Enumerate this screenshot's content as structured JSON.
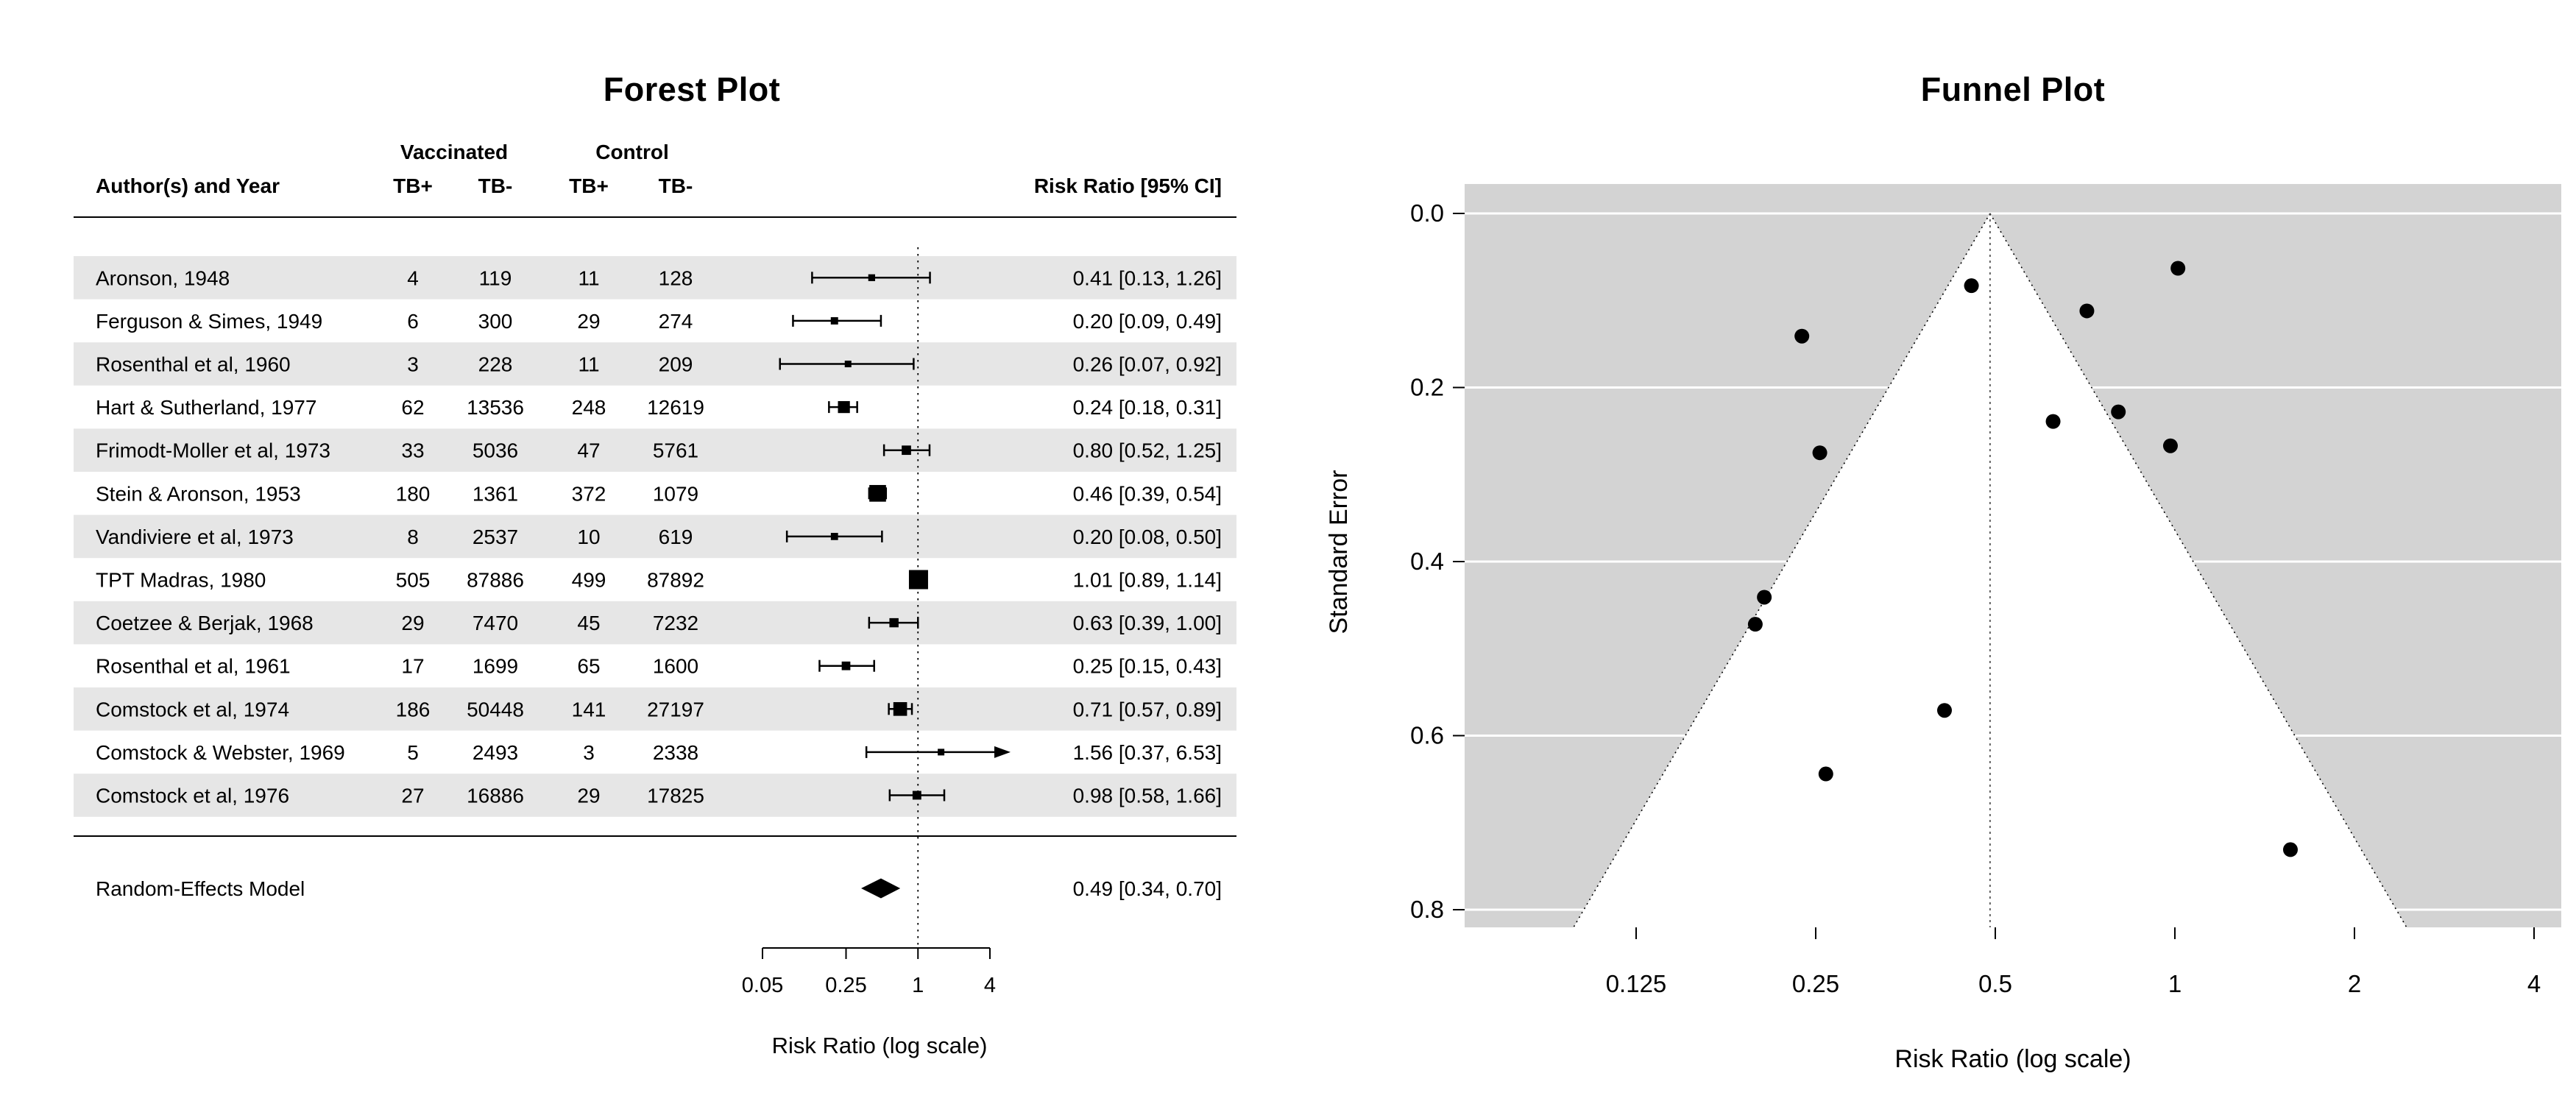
{
  "colors": {
    "stripe": "#e6e6e6",
    "funnel_bg": "#d3d3d3",
    "funnel_region": "#ffffff",
    "ink": "#000000",
    "gridline": "#ffffff"
  },
  "chart_data": [
    {
      "type": "forest",
      "title": "Forest Plot",
      "axis_label": "Risk Ratio (log scale)",
      "columns": {
        "author": "Author(s) and Year",
        "group1": "Vaccinated",
        "group2": "Control",
        "tbpos": "TB+",
        "tbneg": "TB-",
        "rr": "Risk Ratio [95% CI]"
      },
      "axis": {
        "scale": "log",
        "ticks": [
          0.05,
          0.25,
          1,
          4
        ],
        "tick_labels": [
          "0.05",
          "0.25",
          "1",
          "4"
        ],
        "reference_line": 1,
        "xlim": [
          0.05,
          4
        ]
      },
      "studies": [
        {
          "author": "Aronson, 1948",
          "vpos": "4",
          "vneg": "119",
          "cpos": "11",
          "cneg": "128",
          "est": 0.41,
          "lo": 0.13,
          "hi": 1.26,
          "se": 0.571,
          "label": "0.41 [0.13, 1.26]"
        },
        {
          "author": "Ferguson & Simes, 1949",
          "vpos": "6",
          "vneg": "300",
          "cpos": "29",
          "cneg": "274",
          "est": 0.2,
          "lo": 0.09,
          "hi": 0.49,
          "se": 0.441,
          "label": "0.20 [0.09, 0.49]"
        },
        {
          "author": "Rosenthal et al, 1960",
          "vpos": "3",
          "vneg": "228",
          "cpos": "11",
          "cneg": "209",
          "est": 0.26,
          "lo": 0.07,
          "hi": 0.92,
          "se": 0.644,
          "label": "0.26 [0.07, 0.92]"
        },
        {
          "author": "Hart & Sutherland, 1977",
          "vpos": "62",
          "vneg": "13536",
          "cpos": "248",
          "cneg": "12619",
          "est": 0.24,
          "lo": 0.18,
          "hi": 0.31,
          "se": 0.141,
          "label": "0.24 [0.18, 0.31]"
        },
        {
          "author": "Frimodt-Moller et al, 1973",
          "vpos": "33",
          "vneg": "5036",
          "cpos": "47",
          "cneg": "5761",
          "est": 0.8,
          "lo": 0.52,
          "hi": 1.25,
          "se": 0.228,
          "label": "0.80 [0.52, 1.25]"
        },
        {
          "author": "Stein & Aronson, 1953",
          "vpos": "180",
          "vneg": "1361",
          "cpos": "372",
          "cneg": "1079",
          "est": 0.46,
          "lo": 0.39,
          "hi": 0.54,
          "se": 0.083,
          "label": "0.46 [0.39, 0.54]"
        },
        {
          "author": "Vandiviere et al, 1973",
          "vpos": "8",
          "vneg": "2537",
          "cpos": "10",
          "cneg": "619",
          "est": 0.2,
          "lo": 0.08,
          "hi": 0.5,
          "se": 0.472,
          "label": "0.20 [0.08, 0.50]"
        },
        {
          "author": "TPT Madras, 1980",
          "vpos": "505",
          "vneg": "87886",
          "cpos": "499",
          "cneg": "87892",
          "est": 1.01,
          "lo": 0.89,
          "hi": 1.14,
          "se": 0.063,
          "label": "1.01 [0.89, 1.14]"
        },
        {
          "author": "Coetzee & Berjak, 1968",
          "vpos": "29",
          "vneg": "7470",
          "cpos": "45",
          "cneg": "7232",
          "est": 0.63,
          "lo": 0.39,
          "hi": 1.0,
          "se": 0.239,
          "label": "0.63 [0.39, 1.00]"
        },
        {
          "author": "Rosenthal et al, 1961",
          "vpos": "17",
          "vneg": "1699",
          "cpos": "65",
          "cneg": "1600",
          "est": 0.25,
          "lo": 0.15,
          "hi": 0.43,
          "se": 0.275,
          "label": "0.25 [0.15, 0.43]"
        },
        {
          "author": "Comstock et al, 1974",
          "vpos": "186",
          "vneg": "50448",
          "cpos": "141",
          "cneg": "27197",
          "est": 0.71,
          "lo": 0.57,
          "hi": 0.89,
          "se": 0.112,
          "label": "0.71 [0.57, 0.89]"
        },
        {
          "author": "Comstock & Webster, 1969",
          "vpos": "5",
          "vneg": "2493",
          "cpos": "3",
          "cneg": "2338",
          "est": 1.56,
          "lo": 0.37,
          "hi": 6.53,
          "se": 0.731,
          "label": "1.56 [0.37, 6.53]"
        },
        {
          "author": "Comstock et al, 1976",
          "vpos": "27",
          "vneg": "16886",
          "cpos": "29",
          "cneg": "17825",
          "est": 0.98,
          "lo": 0.58,
          "hi": 1.66,
          "se": 0.267,
          "label": "0.98 [0.58, 1.66]"
        }
      ],
      "summary": {
        "label": "Random-Effects Model",
        "est": 0.49,
        "lo": 0.34,
        "hi": 0.7,
        "text": "0.49 [0.34, 0.70]"
      }
    },
    {
      "type": "scatter",
      "subtype": "funnel",
      "title": "Funnel Plot",
      "xlabel": "Risk Ratio (log scale)",
      "ylabel": "Standard Error",
      "x_scale": "log",
      "x_ticks": [
        0.125,
        0.25,
        0.5,
        1,
        2,
        4
      ],
      "x_tick_labels": [
        "0.125",
        "0.25",
        "0.5",
        "1",
        "2",
        "4"
      ],
      "y_ticks": [
        0.0,
        0.2,
        0.4,
        0.6,
        0.8
      ],
      "y_tick_labels": [
        "0.0",
        "0.2",
        "0.4",
        "0.6",
        "0.8"
      ],
      "center_estimate": 0.49,
      "ci_z": 1.96,
      "points": [
        {
          "rr": 0.411,
          "se": 0.571
        },
        {
          "rr": 0.205,
          "se": 0.441
        },
        {
          "rr": 0.26,
          "se": 0.644
        },
        {
          "rr": 0.237,
          "se": 0.141
        },
        {
          "rr": 0.804,
          "se": 0.228
        },
        {
          "rr": 0.456,
          "se": 0.083
        },
        {
          "rr": 0.198,
          "se": 0.472
        },
        {
          "rr": 1.012,
          "se": 0.063
        },
        {
          "rr": 0.625,
          "se": 0.239
        },
        {
          "rr": 0.254,
          "se": 0.275
        },
        {
          "rr": 0.712,
          "se": 0.112
        },
        {
          "rr": 1.562,
          "se": 0.731
        },
        {
          "rr": 0.983,
          "se": 0.267
        }
      ]
    }
  ]
}
